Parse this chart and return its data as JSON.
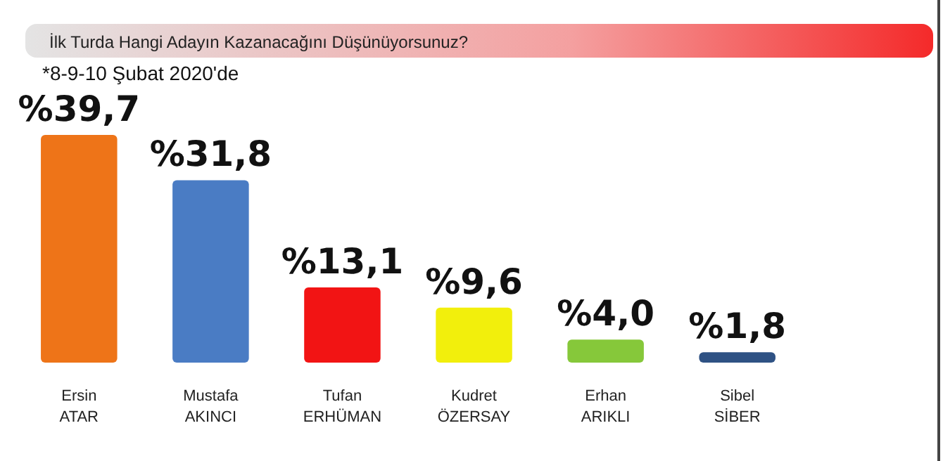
{
  "chart_data": {
    "type": "bar",
    "title": "İlk Turda Hangi Adayın Kazanacağını Düşünüyorsunuz?",
    "subtitle": "*8-9-10 Şubat 2020'de",
    "categories": [
      "Ersin\nATAR",
      "Mustafa\nAKINCI",
      "Tufan\nERHÜMAN",
      "Kudret\nÖZERSAY",
      "Erhan\nARIKLI",
      "Sibel\nSİBER"
    ],
    "values": [
      39.7,
      31.8,
      13.1,
      9.6,
      4.0,
      1.8
    ],
    "value_labels": [
      "%39,7",
      "%31,8",
      "%13,1",
      "%9,6",
      "%4,0",
      "%1,8"
    ],
    "colors": [
      "#ee7418",
      "#4a7cc4",
      "#f21414",
      "#f2ef0c",
      "#86c83a",
      "#2f5284"
    ]
  }
}
